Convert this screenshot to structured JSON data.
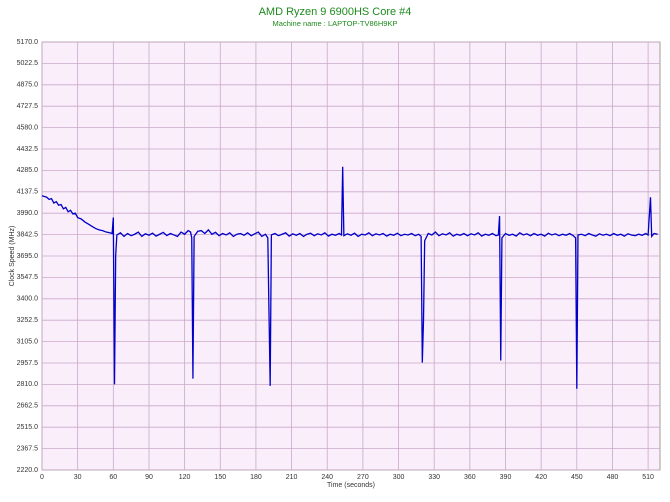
{
  "chart_data": {
    "type": "line",
    "title": "AMD Ryzen 9 6900HS Core #4",
    "subtitle": "Machine name : LAPTOP-TV86H9KP",
    "x_label": "Time (seconds)",
    "y_label": "Clock Speed (MHz)",
    "xlim": [
      0,
      520
    ],
    "xticks": [
      0,
      30,
      60,
      90,
      120,
      150,
      180,
      210,
      240,
      270,
      300,
      330,
      360,
      390,
      420,
      450,
      480,
      510
    ],
    "ylim": [
      2220,
      5170
    ],
    "yticks": [
      {
        "value": 2220,
        "label": "2220.0"
      },
      2367.5,
      {
        "value": 2515,
        "label": "2515.0"
      },
      2662.5,
      {
        "value": 2810,
        "label": "2810.0"
      },
      2957.5,
      {
        "value": 3105,
        "label": "3105.0"
      },
      3252.5,
      {
        "value": 3400,
        "label": "3400.0"
      },
      3547.5,
      {
        "value": 3695,
        "label": "3695.0"
      },
      3842.5,
      {
        "value": 3990,
        "label": "3990.0"
      },
      4137.5,
      {
        "value": 4285,
        "label": "4285.0"
      },
      4432.5,
      {
        "value": 4580,
        "label": "4580.0"
      },
      4727.5,
      {
        "value": 4875,
        "label": "4875.0"
      },
      5022.5,
      {
        "value": 5170,
        "label": "5170.0"
      }
    ],
    "grid": true,
    "color": "#0000c8",
    "x": [
      0,
      2,
      4,
      6,
      8,
      10,
      12,
      14,
      16,
      18,
      20,
      22,
      24,
      26,
      28,
      30,
      33,
      36,
      39,
      42,
      45,
      48,
      51,
      54,
      57,
      59,
      60,
      61,
      62,
      63,
      66,
      69,
      72,
      75,
      78,
      81,
      84,
      87,
      90,
      93,
      96,
      99,
      102,
      105,
      108,
      111,
      114,
      117,
      120,
      123,
      125,
      126,
      127,
      128,
      131,
      134,
      137,
      140,
      143,
      146,
      149,
      152,
      155,
      158,
      161,
      164,
      167,
      170,
      173,
      176,
      179,
      182,
      185,
      188,
      190,
      191,
      192,
      193,
      196,
      199,
      202,
      205,
      208,
      211,
      214,
      217,
      220,
      223,
      226,
      229,
      232,
      235,
      238,
      241,
      244,
      247,
      250,
      252,
      253,
      254,
      257,
      260,
      263,
      266,
      269,
      272,
      275,
      278,
      281,
      284,
      287,
      290,
      293,
      296,
      299,
      302,
      305,
      308,
      311,
      314,
      317,
      319,
      320,
      321,
      322,
      325,
      328,
      331,
      334,
      337,
      340,
      343,
      346,
      349,
      352,
      355,
      358,
      361,
      364,
      367,
      370,
      373,
      376,
      379,
      382,
      384,
      385,
      386,
      387,
      390,
      393,
      396,
      399,
      402,
      405,
      408,
      411,
      414,
      417,
      420,
      423,
      426,
      429,
      432,
      435,
      438,
      441,
      444,
      447,
      449,
      450,
      451,
      454,
      457,
      460,
      463,
      466,
      469,
      472,
      475,
      478,
      481,
      484,
      487,
      490,
      493,
      496,
      499,
      502,
      505,
      508,
      510,
      512,
      513,
      515,
      518
    ],
    "values": [
      4110,
      4105,
      4100,
      4085,
      4090,
      4060,
      4070,
      4045,
      4050,
      4020,
      4030,
      4000,
      4010,
      3985,
      3990,
      3960,
      3950,
      3930,
      3915,
      3900,
      3885,
      3875,
      3870,
      3860,
      3855,
      3850,
      3960,
      2810,
      3700,
      3840,
      3855,
      3830,
      3850,
      3835,
      3845,
      3860,
      3830,
      3848,
      3838,
      3852,
      3832,
      3845,
      3858,
      3836,
      3850,
      3840,
      3830,
      3860,
      3845,
      3870,
      3860,
      3820,
      2850,
      3830,
      3865,
      3870,
      3850,
      3875,
      3845,
      3858,
      3835,
      3850,
      3840,
      3855,
      3830,
      3845,
      3850,
      3838,
      3855,
      3835,
      3848,
      3860,
      3830,
      3845,
      3820,
      3300,
      2800,
      3840,
      3850,
      3835,
      3845,
      3855,
      3832,
      3848,
      3838,
      3850,
      3830,
      3845,
      3852,
      3835,
      3848,
      3840,
      3855,
      3832,
      3845,
      3838,
      3850,
      3840,
      4310,
      3835,
      3848,
      3838,
      3852,
      3830,
      3845,
      3840,
      3855,
      3835,
      3848,
      3840,
      3850,
      3832,
      3845,
      3838,
      3852,
      3835,
      3845,
      3840,
      3850,
      3835,
      3845,
      3830,
      2960,
      3250,
      3800,
      3850,
      3840,
      3860,
      3835,
      3848,
      3840,
      3855,
      3832,
      3845,
      3838,
      3850,
      3835,
      3848,
      3840,
      3855,
      3832,
      3845,
      3838,
      3850,
      3835,
      3840,
      3970,
      2975,
      3820,
      3850,
      3838,
      3845,
      3832,
      3855,
      3840,
      3848,
      3835,
      3850,
      3838,
      3845,
      3832,
      3852,
      3840,
      3848,
      3835,
      3845,
      3838,
      3850,
      3835,
      3820,
      2780,
      3840,
      3845,
      3835,
      3850,
      3840,
      3832,
      3848,
      3838,
      3845,
      3835,
      3850,
      3838,
      3845,
      3832,
      3848,
      3840,
      3835,
      3845,
      3838,
      3850,
      3840,
      4100,
      3830,
      3850,
      3845
    ]
  }
}
